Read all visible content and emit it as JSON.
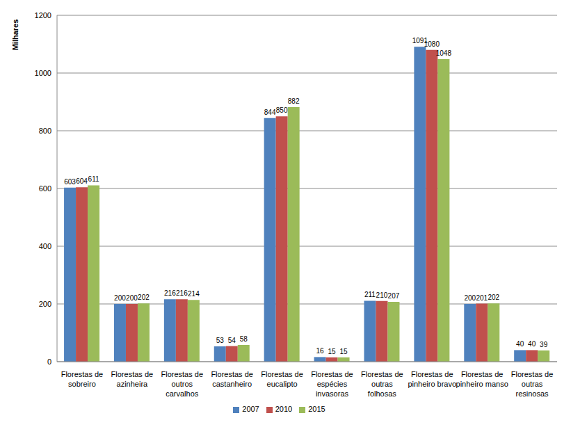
{
  "chart_data": {
    "type": "bar",
    "y_label": "Milhares",
    "categories": [
      "Florestas de sobreiro",
      "Florestas de azinheira",
      "Florestas de outros carvalhos",
      "Florestas de castanheiro",
      "Florestas de eucalipto",
      "Florestas de espécies invasoras",
      "Florestas de outras folhosas",
      "Florestas de pinheiro bravo",
      "Florestas de pinheiro manso",
      "Florestas de outras resinosas"
    ],
    "series": [
      {
        "name": "2007",
        "color": "#4f81bd",
        "values": [
          603,
          200,
          216,
          53,
          844,
          16,
          211,
          1091,
          200,
          40
        ]
      },
      {
        "name": "2010",
        "color": "#c0504d",
        "values": [
          604,
          200,
          216,
          54,
          850,
          15,
          210,
          1080,
          201,
          40
        ]
      },
      {
        "name": "2015",
        "color": "#9bbb59",
        "values": [
          611,
          202,
          214,
          58,
          882,
          15,
          207,
          1048,
          202,
          39
        ]
      }
    ],
    "ylim": [
      0,
      1200
    ],
    "yticks": [
      0,
      200,
      400,
      600,
      800,
      1000,
      1200
    ],
    "grid": true,
    "legend": "bottom",
    "data_labels": true
  }
}
